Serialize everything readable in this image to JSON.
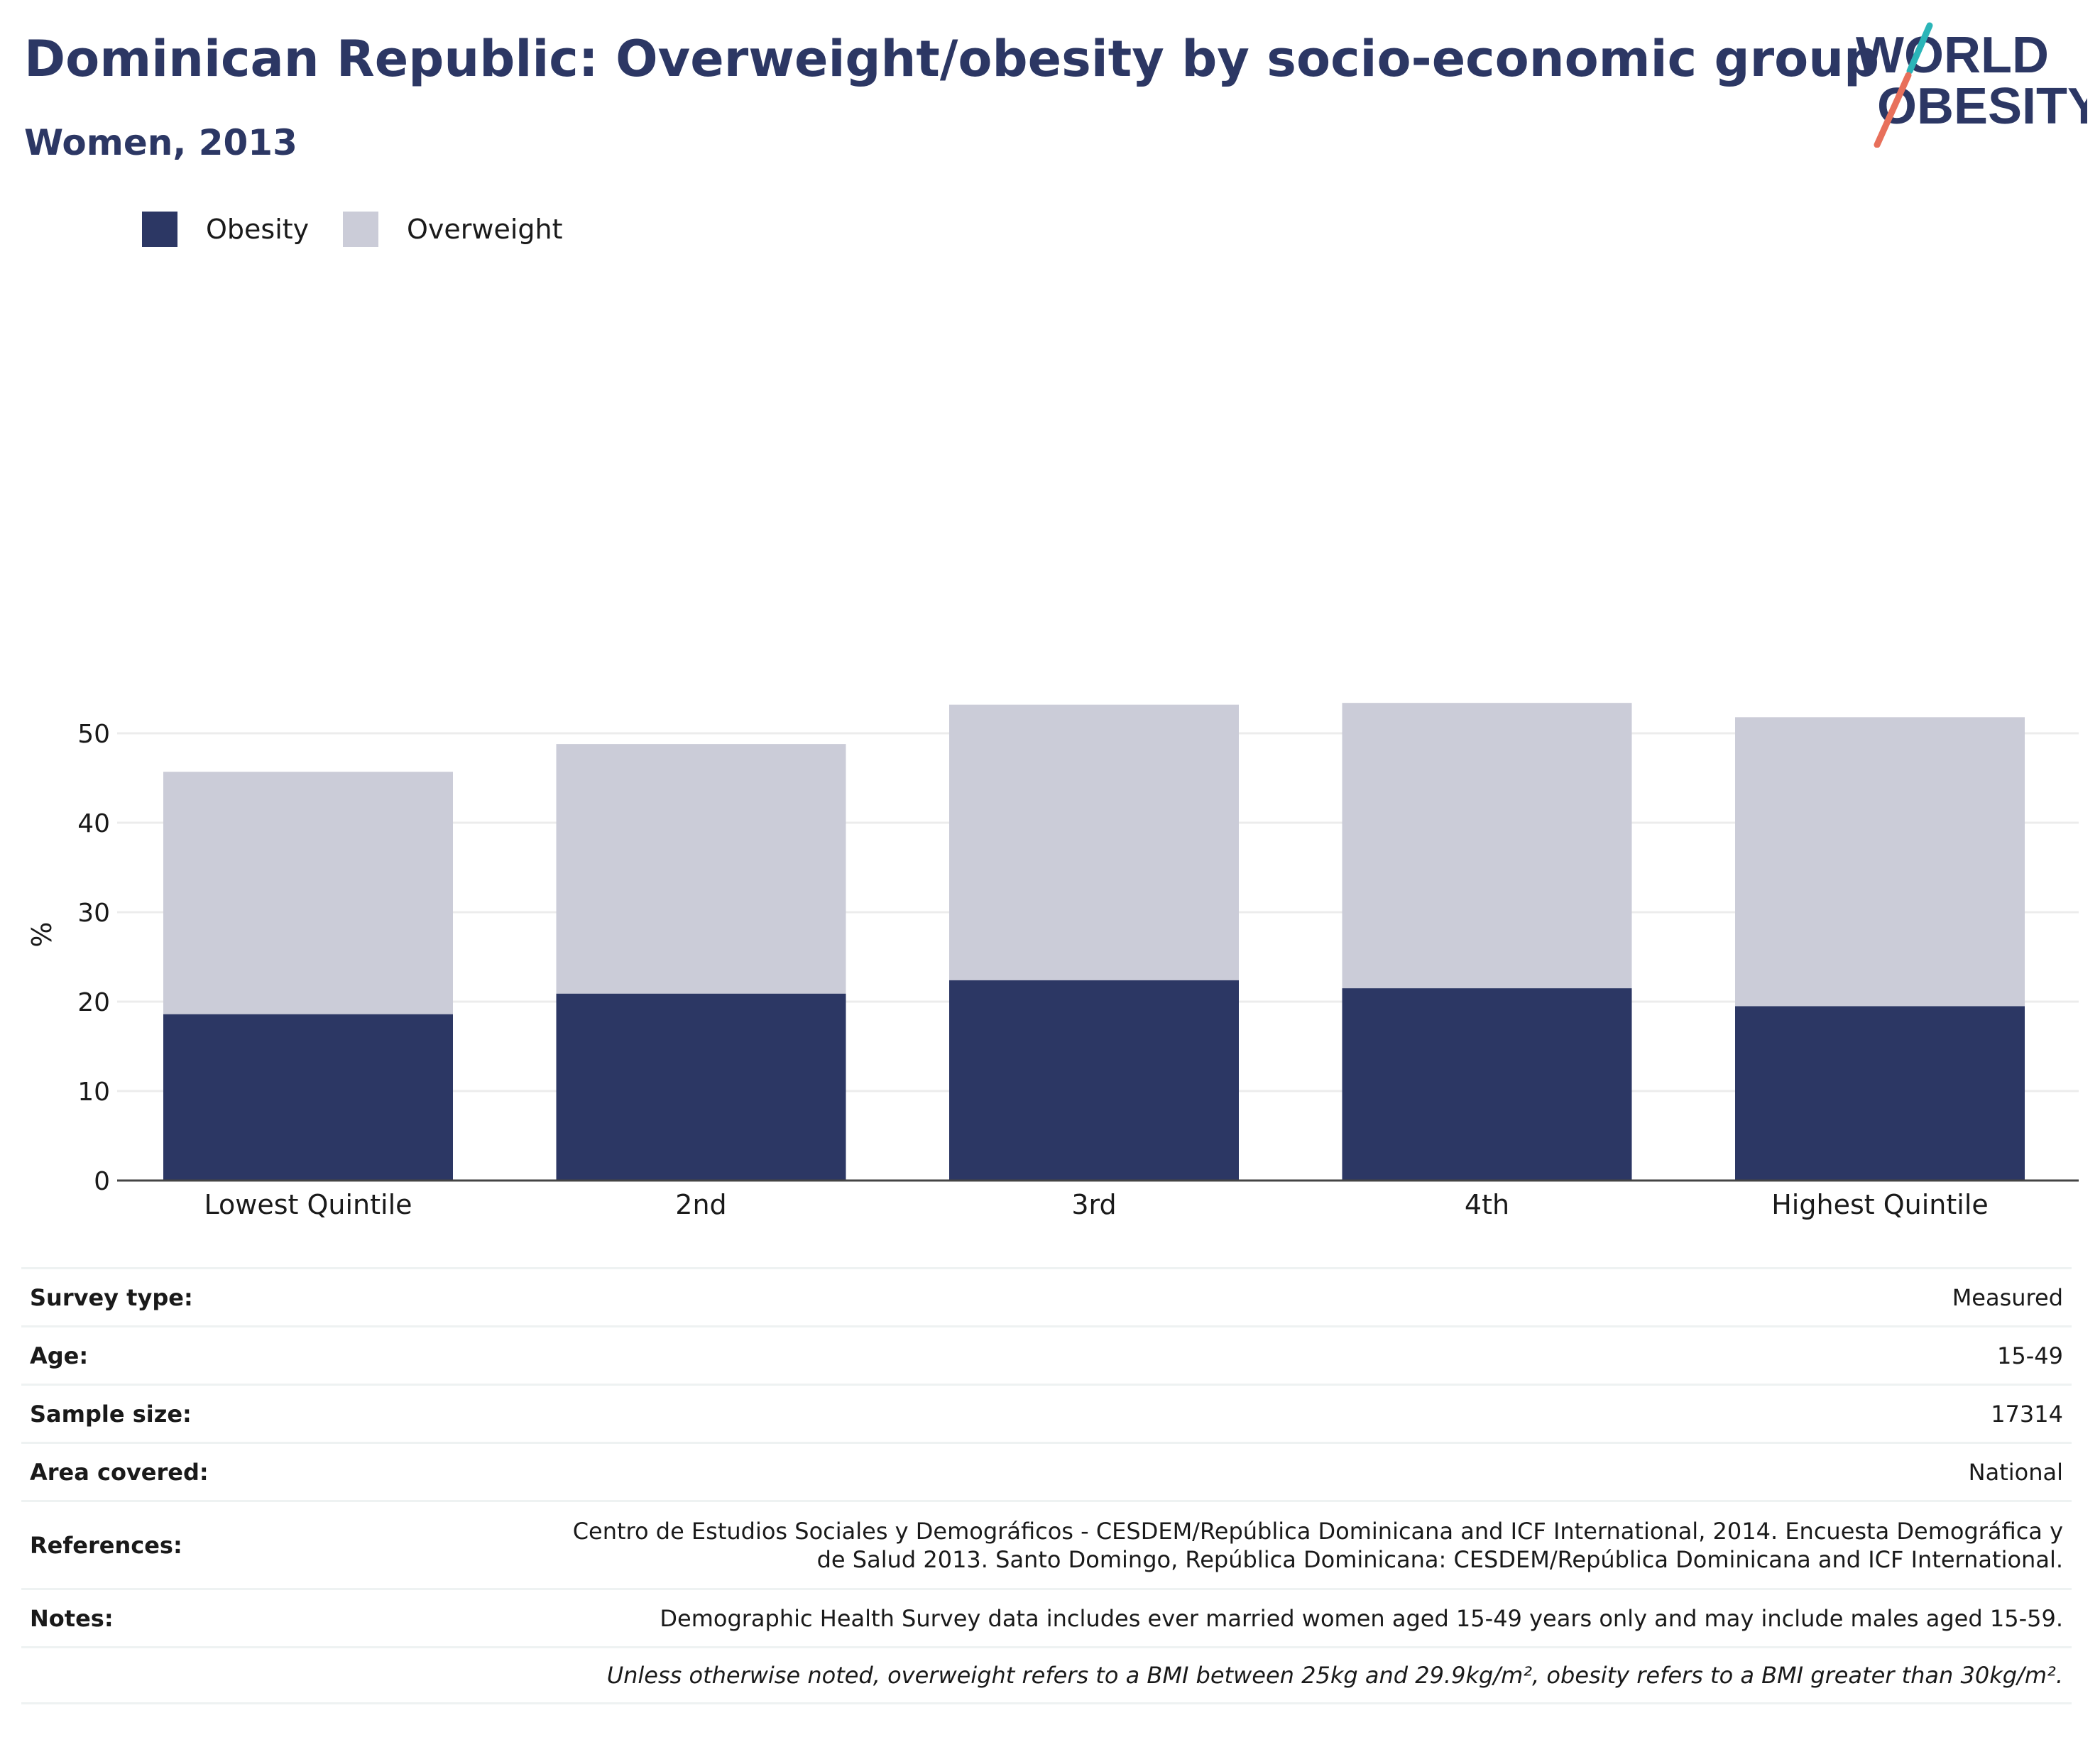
{
  "header": {
    "title": "Dominican Republic: Overweight/obesity by socio-economic group",
    "subtitle": "Women, 2013"
  },
  "logo": {
    "line1": "WORLD",
    "line2": "OBESITY",
    "colors": {
      "text": "#2c3764",
      "slash_teal": "#2bb5b8",
      "slash_coral": "#e8705b"
    }
  },
  "chart_data": {
    "type": "bar",
    "stacked": true,
    "categories": [
      "Lowest Quintile",
      "2nd",
      "3rd",
      "4th",
      "Highest Quintile"
    ],
    "series": [
      {
        "name": "Obesity",
        "color": "#2c3764",
        "values": [
          18.6,
          20.9,
          22.4,
          21.5,
          19.5
        ]
      },
      {
        "name": "Overweight",
        "color": "#cbccd8",
        "values": [
          27.1,
          27.9,
          30.8,
          31.9,
          32.3
        ]
      }
    ],
    "ylabel": "%",
    "ylim": [
      0,
      55
    ],
    "yticks": [
      0,
      10,
      20,
      30,
      40,
      50
    ],
    "grid": true,
    "legend": "top-left"
  },
  "info": {
    "rows": [
      {
        "label": "Survey type:",
        "value": "Measured"
      },
      {
        "label": "Age:",
        "value": "15-49"
      },
      {
        "label": "Sample size:",
        "value": "17314"
      },
      {
        "label": "Area covered:",
        "value": "National"
      },
      {
        "label": "References:",
        "value": "Centro de Estudios Sociales y Demográficos - CESDEM/República Dominicana and ICF International, 2014. Encuesta Demográfica y de Salud 2013. Santo Domingo, República Dominicana: CESDEM/República Dominicana and ICF International."
      },
      {
        "label": "Notes:",
        "value": "Demographic Health Survey data includes ever married women aged 15-49 years only and may include males aged 15-59."
      }
    ],
    "footnote": "Unless otherwise noted, overweight refers to a BMI between 25kg and 29.9kg/m², obesity refers to a BMI greater than 30kg/m²."
  }
}
